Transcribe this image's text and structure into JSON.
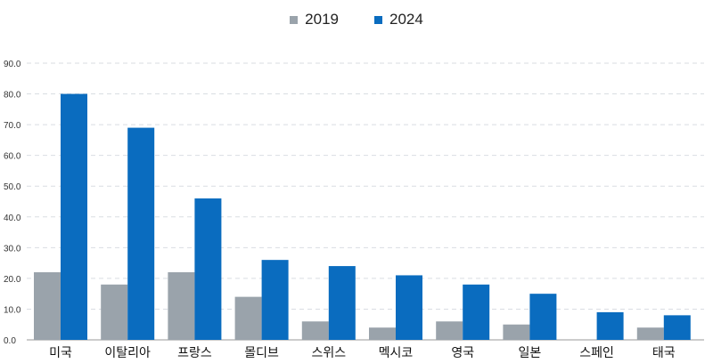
{
  "chart_data": {
    "type": "bar",
    "title": "",
    "xlabel": "",
    "ylabel": "",
    "ylim": [
      0,
      90
    ],
    "ytick_labels": [
      "0.0",
      "10.0",
      "20.0",
      "30.0",
      "40.0",
      "50.0",
      "60.0",
      "70.0",
      "80.0",
      "90.0"
    ],
    "grid": true,
    "legend_position": "top-center",
    "categories": [
      "미국",
      "이탈리아",
      "프랑스",
      "몰디브",
      "스위스",
      "멕시코",
      "영국",
      "일본",
      "스페인",
      "태국"
    ],
    "series": [
      {
        "name": "2019",
        "color": "#9aa3ab",
        "values": [
          22,
          18,
          22,
          14,
          6,
          4,
          6,
          5,
          0,
          4
        ]
      },
      {
        "name": "2024",
        "color": "#0a6cbf",
        "values": [
          80,
          69,
          46,
          26,
          24,
          21,
          18,
          15,
          9,
          8
        ]
      }
    ]
  }
}
